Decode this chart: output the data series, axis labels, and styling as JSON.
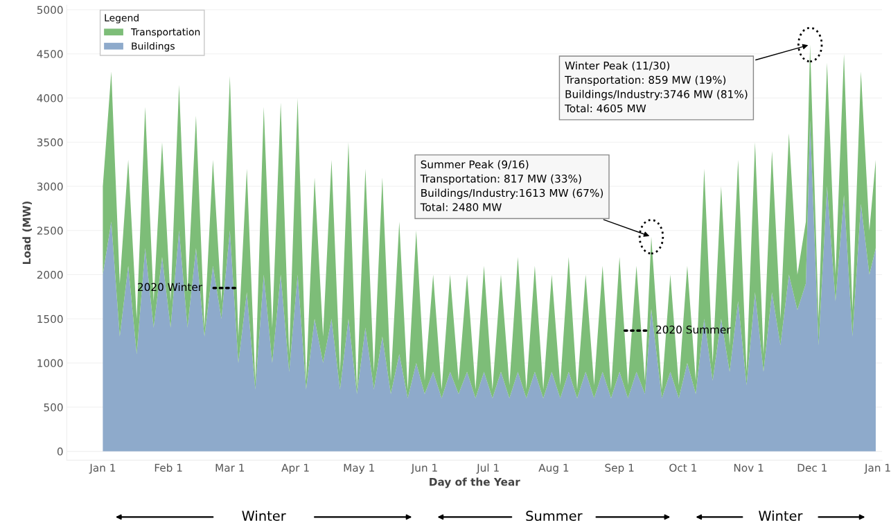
{
  "chart_data": {
    "type": "area",
    "stacked": true,
    "xlabel": "Day of the Year",
    "ylabel": "Load (MW)",
    "legend_title": "Legend",
    "legend": "top left",
    "grid": "y",
    "x": [
      "2020-01-01",
      "2020-01-05",
      "2020-01-09",
      "2020-01-13",
      "2020-01-17",
      "2020-01-21",
      "2020-01-25",
      "2020-01-29",
      "2020-02-02",
      "2020-02-06",
      "2020-02-10",
      "2020-02-14",
      "2020-02-18",
      "2020-02-22",
      "2020-02-26",
      "2020-03-01",
      "2020-03-05",
      "2020-03-09",
      "2020-03-13",
      "2020-03-17",
      "2020-03-21",
      "2020-03-25",
      "2020-03-29",
      "2020-04-02",
      "2020-04-06",
      "2020-04-10",
      "2020-04-14",
      "2020-04-18",
      "2020-04-22",
      "2020-04-26",
      "2020-04-30",
      "2020-05-04",
      "2020-05-08",
      "2020-05-12",
      "2020-05-16",
      "2020-05-20",
      "2020-05-24",
      "2020-05-28",
      "2020-06-01",
      "2020-06-05",
      "2020-06-09",
      "2020-06-13",
      "2020-06-17",
      "2020-06-21",
      "2020-06-25",
      "2020-06-29",
      "2020-07-03",
      "2020-07-07",
      "2020-07-11",
      "2020-07-15",
      "2020-07-19",
      "2020-07-23",
      "2020-07-27",
      "2020-07-31",
      "2020-08-04",
      "2020-08-08",
      "2020-08-12",
      "2020-08-16",
      "2020-08-20",
      "2020-08-24",
      "2020-08-28",
      "2020-09-01",
      "2020-09-05",
      "2020-09-09",
      "2020-09-13",
      "2020-09-16",
      "2020-09-21",
      "2020-09-25",
      "2020-09-29",
      "2020-10-03",
      "2020-10-07",
      "2020-10-11",
      "2020-10-15",
      "2020-10-19",
      "2020-10-23",
      "2020-10-27",
      "2020-10-31",
      "2020-11-04",
      "2020-11-08",
      "2020-11-12",
      "2020-11-16",
      "2020-11-20",
      "2020-11-24",
      "2020-11-28",
      "2020-11-30",
      "2020-12-04",
      "2020-12-08",
      "2020-12-12",
      "2020-12-16",
      "2020-12-20",
      "2020-12-24",
      "2020-12-28",
      "2020-12-31"
    ],
    "series": [
      {
        "name": "Buildings",
        "color": "#8eaacb",
        "values": [
          2000,
          2600,
          1300,
          2100,
          1100,
          2300,
          1400,
          2200,
          1400,
          2500,
          1400,
          2300,
          1300,
          2100,
          1500,
          2500,
          1000,
          1800,
          700,
          2000,
          1000,
          2000,
          900,
          2000,
          700,
          1500,
          1000,
          1500,
          700,
          1500,
          650,
          1400,
          700,
          1300,
          650,
          1100,
          600,
          1000,
          650,
          900,
          600,
          900,
          650,
          900,
          600,
          900,
          600,
          900,
          600,
          900,
          600,
          900,
          600,
          900,
          600,
          900,
          600,
          900,
          600,
          900,
          600,
          900,
          600,
          900,
          650,
          1613,
          600,
          900,
          600,
          1000,
          650,
          1500,
          800,
          1500,
          900,
          1700,
          750,
          1800,
          900,
          1800,
          1200,
          2000,
          1600,
          1900,
          3746,
          1200,
          3000,
          1700,
          2900,
          1300,
          2800,
          2000,
          2300
        ]
      },
      {
        "name": "Transportation",
        "color": "#7dbd78",
        "values": [
          1000,
          1700,
          600,
          1200,
          400,
          1600,
          300,
          1300,
          300,
          1650,
          400,
          1500,
          100,
          1200,
          200,
          1750,
          300,
          1400,
          100,
          1900,
          400,
          1950,
          200,
          2000,
          100,
          1600,
          300,
          1800,
          200,
          2000,
          50,
          1800,
          200,
          1800,
          150,
          1500,
          100,
          1500,
          150,
          1100,
          100,
          1100,
          150,
          1100,
          100,
          1200,
          100,
          1100,
          150,
          1300,
          100,
          1200,
          100,
          1100,
          150,
          1300,
          100,
          1100,
          150,
          1200,
          100,
          1300,
          150,
          1200,
          150,
          817,
          100,
          1100,
          150,
          1100,
          150,
          1700,
          200,
          1500,
          300,
          1600,
          150,
          1700,
          200,
          1600,
          300,
          1600,
          400,
          700,
          859,
          300,
          1400,
          300,
          1600,
          300,
          1500,
          500,
          1000
        ]
      }
    ],
    "xlim": [
      "2019-12-15",
      "2021-01-03"
    ],
    "xticks": [
      {
        "value": "2020-01-01",
        "label": "Jan 1"
      },
      {
        "value": "2020-02-01",
        "label": "Feb 1"
      },
      {
        "value": "2020-03-01",
        "label": "Mar 1"
      },
      {
        "value": "2020-04-01",
        "label": "Apr 1"
      },
      {
        "value": "2020-05-01",
        "label": "May 1"
      },
      {
        "value": "2020-06-01",
        "label": "Jun 1"
      },
      {
        "value": "2020-07-01",
        "label": "Jul 1"
      },
      {
        "value": "2020-08-01",
        "label": "Aug 1"
      },
      {
        "value": "2020-09-01",
        "label": "Sep 1"
      },
      {
        "value": "2020-10-01",
        "label": "Oct 1"
      },
      {
        "value": "2020-11-01",
        "label": "Nov 1"
      },
      {
        "value": "2020-12-01",
        "label": "Dec 1"
      },
      {
        "value": "2021-01-01",
        "label": "Jan 1"
      }
    ],
    "ylim": [
      -100,
      5050
    ],
    "yticks": [
      0,
      500,
      1000,
      1500,
      2000,
      2500,
      3000,
      3500,
      4000,
      4500,
      5000
    ],
    "annotations": [
      {
        "text": "Winter Peak (11/30)\nTransportation: 859 MW (19%)\nBuildings/Industry:3746 MW (81%)\nTotal: 4605 MW",
        "x": "2020-11-30",
        "y": 4605
      },
      {
        "text": "Summer Peak (9/16)\nTransportation: 817 MW (33%)\nBuildings/Industry:1613 MW (67%)\nTotal: 2480 MW",
        "x": "2020-09-16",
        "y": 2430
      },
      {
        "text": "2020 Winter",
        "x": "2020-02-17",
        "y": 1850
      },
      "2020 Summer",
      "Winter",
      "Summer",
      "Winter"
    ]
  }
}
